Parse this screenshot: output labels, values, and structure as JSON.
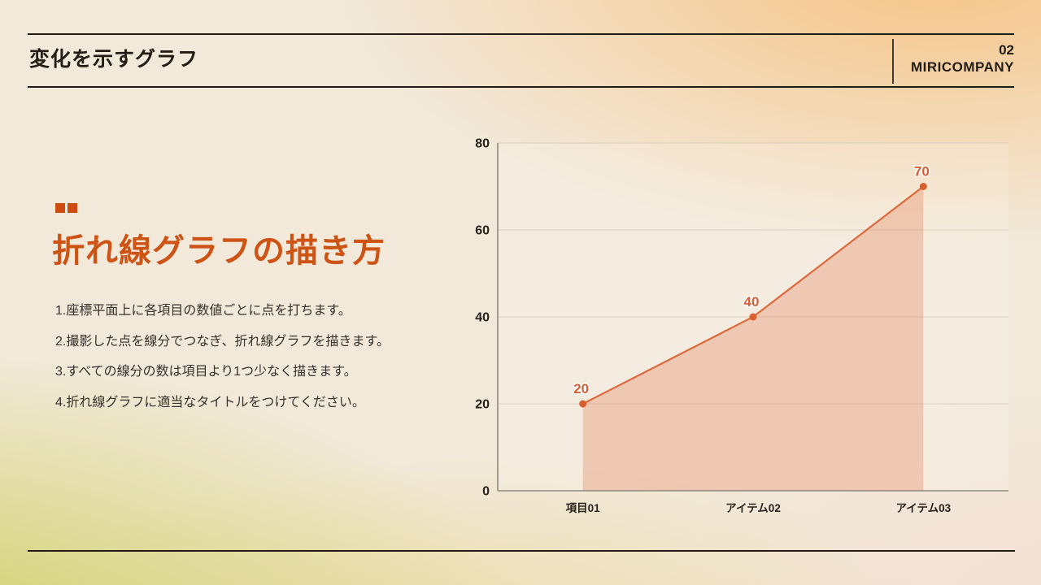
{
  "header": {
    "title": "変化を示すグラフ",
    "page_number": "02",
    "company": "MIRICOMPANY"
  },
  "content": {
    "heading": "折れ線グラフの描き方",
    "steps": [
      "1.座標平面上に各項目の数値ごとに点を打ちます。",
      "2.撮影した点を線分でつなぎ、折れ線グラフを描きます。",
      "3.すべての線分の数は項目より1つ少なく描きます。",
      "4.折れ線グラフに適当なタイトルをつけてください。"
    ]
  },
  "chart_data": {
    "type": "line",
    "area_fill": true,
    "categories": [
      "項目01",
      "アイテム02",
      "アイテム03"
    ],
    "values": [
      20,
      40,
      70
    ],
    "data_labels": [
      "20",
      "40",
      "70"
    ],
    "title": "",
    "xlabel": "",
    "ylabel": "",
    "ylim": [
      0,
      80
    ],
    "yticks": [
      0,
      20,
      40,
      60,
      80
    ],
    "grid": true,
    "legend": false,
    "line_color": "#dd6a3c",
    "area_color": "rgba(221,106,60,0.28)",
    "marker_color": "#d95f31",
    "data_label_color": "#d2603a",
    "tick_label_color": "#26211b",
    "gridline_color": "#d9cfc1",
    "axis_color": "#8f897d",
    "plot_bg": "rgba(255,255,255,0.16)"
  },
  "theme": {
    "accent_orange": "#cd5415",
    "bullet_orange": "#d14b10",
    "text_dark": "#221c14",
    "rule_color": "#211b13"
  }
}
